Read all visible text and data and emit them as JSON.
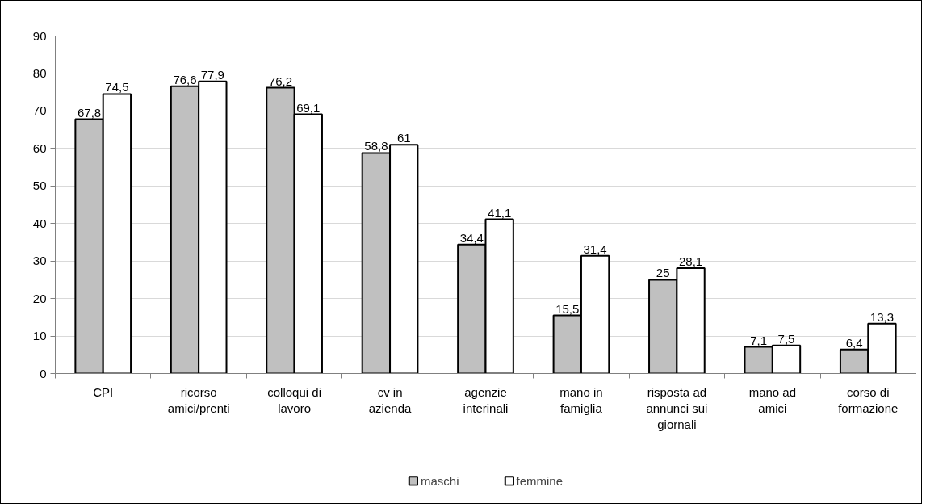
{
  "chart_data": {
    "type": "bar",
    "categories": [
      "CPI",
      "ricorso amici/prenti",
      "colloqui di lavoro",
      "cv in azienda",
      "agenzie interinali",
      "mano in famiglia",
      "risposta ad annunci sui giornali",
      "mano ad amici",
      "corso di formazione"
    ],
    "series": [
      {
        "name": "maschi",
        "color": "#c0c0c0",
        "values": [
          67.8,
          76.6,
          76.2,
          58.8,
          34.4,
          15.5,
          25,
          7.1,
          6.4
        ],
        "value_labels": [
          "67,8",
          "76,6",
          "76,2",
          "58,8",
          "34,4",
          "15,5",
          "25",
          "7,1",
          "6,4"
        ]
      },
      {
        "name": "femmine",
        "color": "#ffffff",
        "values": [
          74.5,
          77.9,
          69.1,
          61,
          41.1,
          31.4,
          28.1,
          7.5,
          13.3
        ],
        "value_labels": [
          "74,5",
          "77,9",
          "69,1",
          "61",
          "41,1",
          "31,4",
          "28,1",
          "7,5",
          "13,3"
        ]
      }
    ],
    "ylim": [
      0,
      90
    ],
    "yticks": [
      0,
      10,
      20,
      30,
      40,
      50,
      60,
      70,
      80,
      90
    ],
    "grid": "y",
    "legend": "bottom"
  }
}
